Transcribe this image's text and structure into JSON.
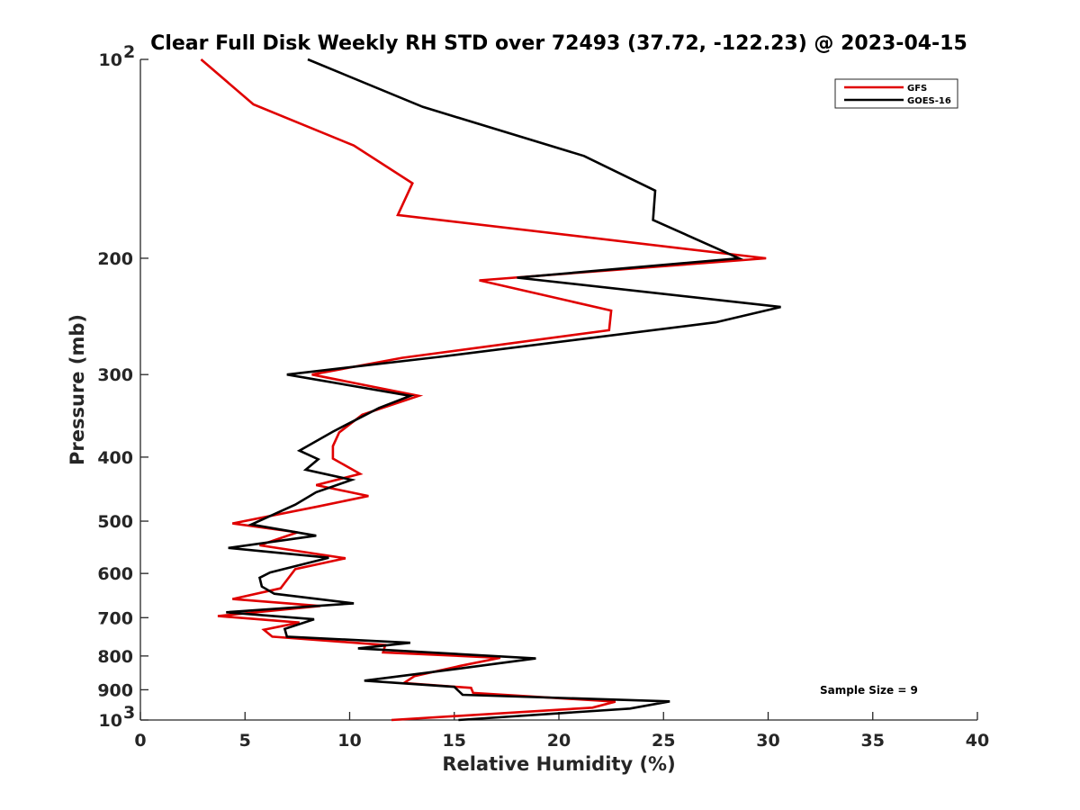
{
  "chart_data": {
    "type": "line",
    "title": "Clear Full Disk Weekly RH STD over 72493 (37.72, -122.23) @ 2023-04-15",
    "xlabel": "Relative Humidity (%)",
    "ylabel": "Pressure (mb)",
    "xlim": [
      0,
      40
    ],
    "ylim": [
      100,
      1000
    ],
    "y_scale": "log",
    "y_reversed": true,
    "grid": false,
    "legend_position": "top-right",
    "x_ticks": [
      0,
      5,
      10,
      15,
      20,
      25,
      30,
      35,
      40
    ],
    "y_ticks": [
      {
        "value": 100,
        "label": "10",
        "exp": "2"
      },
      {
        "value": 200,
        "label": "200",
        "exp": ""
      },
      {
        "value": 300,
        "label": "300",
        "exp": ""
      },
      {
        "value": 400,
        "label": "400",
        "exp": ""
      },
      {
        "value": 500,
        "label": "500",
        "exp": ""
      },
      {
        "value": 600,
        "label": "600",
        "exp": ""
      },
      {
        "value": 700,
        "label": "700",
        "exp": ""
      },
      {
        "value": 800,
        "label": "800",
        "exp": ""
      },
      {
        "value": 900,
        "label": "900",
        "exp": ""
      },
      {
        "value": 1000,
        "label": "10",
        "exp": "3"
      }
    ],
    "annotation": "Sample Size = 9",
    "series": [
      {
        "name": "GFS",
        "color": "#e00000",
        "points": [
          [
            2.9,
            100
          ],
          [
            5.4,
            117
          ],
          [
            10.2,
            135
          ],
          [
            13.0,
            154
          ],
          [
            12.3,
            172
          ],
          [
            29.9,
            200
          ],
          [
            16.2,
            216
          ],
          [
            22.5,
            240
          ],
          [
            22.4,
            257
          ],
          [
            12.5,
            283
          ],
          [
            8.2,
            300
          ],
          [
            13.3,
            323
          ],
          [
            10.6,
            345
          ],
          [
            9.5,
            367
          ],
          [
            9.2,
            385
          ],
          [
            9.2,
            402
          ],
          [
            10.5,
            424
          ],
          [
            8.4,
            441
          ],
          [
            10.9,
            458
          ],
          [
            8.5,
            475
          ],
          [
            4.4,
            504
          ],
          [
            7.5,
            520
          ],
          [
            5.7,
            544
          ],
          [
            9.8,
            569
          ],
          [
            7.4,
            591
          ],
          [
            7.0,
            614
          ],
          [
            6.7,
            632
          ],
          [
            4.4,
            656
          ],
          [
            8.6,
            672
          ],
          [
            3.7,
            696
          ],
          [
            7.6,
            712
          ],
          [
            5.9,
            730
          ],
          [
            6.3,
            748
          ],
          [
            11.7,
            770
          ],
          [
            11.6,
            790
          ],
          [
            17.2,
            805
          ],
          [
            15.3,
            828
          ],
          [
            13.1,
            858
          ],
          [
            12.6,
            879
          ],
          [
            15.8,
            894
          ],
          [
            15.9,
            910
          ],
          [
            22.7,
            938
          ],
          [
            21.6,
            958
          ],
          [
            12.0,
            1000
          ]
        ]
      },
      {
        "name": "GOES-16",
        "color": "#000000",
        "points": [
          [
            8.0,
            100
          ],
          [
            13.5,
            118
          ],
          [
            21.2,
            140
          ],
          [
            24.6,
            158
          ],
          [
            24.5,
            175
          ],
          [
            28.6,
            200
          ],
          [
            18.0,
            214
          ],
          [
            30.6,
            237
          ],
          [
            27.5,
            250
          ],
          [
            14.3,
            282
          ],
          [
            7.0,
            300
          ],
          [
            12.9,
            323
          ],
          [
            11.4,
            337
          ],
          [
            9.2,
            366
          ],
          [
            7.6,
            391
          ],
          [
            8.5,
            403
          ],
          [
            7.9,
            418
          ],
          [
            10.1,
            433
          ],
          [
            8.4,
            452
          ],
          [
            7.4,
            472
          ],
          [
            5.3,
            506
          ],
          [
            8.4,
            526
          ],
          [
            4.2,
            549
          ],
          [
            9.0,
            568
          ],
          [
            6.2,
            598
          ],
          [
            5.7,
            609
          ],
          [
            5.8,
            628
          ],
          [
            6.4,
            644
          ],
          [
            10.2,
            666
          ],
          [
            4.1,
            687
          ],
          [
            8.3,
            704
          ],
          [
            6.9,
            728
          ],
          [
            7.0,
            748
          ],
          [
            12.9,
            764
          ],
          [
            10.4,
            779
          ],
          [
            18.9,
            807
          ],
          [
            15.5,
            834
          ],
          [
            10.7,
            872
          ],
          [
            15.0,
            891
          ],
          [
            15.4,
            916
          ],
          [
            25.3,
            937
          ],
          [
            23.4,
            961
          ],
          [
            15.2,
            1000
          ]
        ]
      }
    ]
  }
}
